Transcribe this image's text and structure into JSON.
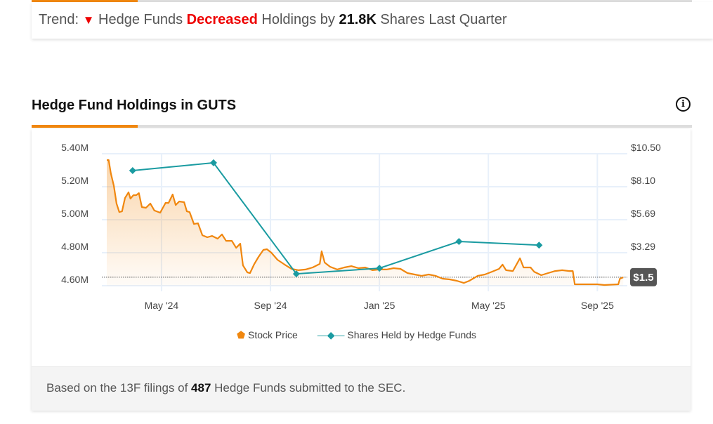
{
  "trend": {
    "prefix": "Trend:",
    "arrow": "▼",
    "part1": "Hedge Funds",
    "verb": "Decreased",
    "part2": "Holdings by",
    "amount": "21.8K",
    "part3": "Shares Last Quarter"
  },
  "section_title": "Hedge Fund Holdings in GUTS",
  "info_icon": "i",
  "footer": {
    "prefix": "Based on the 13F filings of",
    "count": "487",
    "suffix": "Hedge Funds submitted to the SEC."
  },
  "colors": {
    "price": "#f0870f",
    "shares": "#1a9ba1",
    "accent": "#f0870f",
    "down": "#e00000"
  },
  "chart_data": {
    "type": "line",
    "title": "Hedge Fund Holdings in GUTS",
    "x_units": "months since Jan 2024",
    "x_range": [
      1.81,
      21.1
    ],
    "x_ticks": [
      {
        "v": 4,
        "label": "May '24"
      },
      {
        "v": 8,
        "label": "Sep '24"
      },
      {
        "v": 12,
        "label": "Jan '25"
      },
      {
        "v": 16,
        "label": "May '25"
      },
      {
        "v": 20,
        "label": "Sep '25"
      }
    ],
    "y_left": {
      "label": "Shares Held",
      "range": [
        4.6,
        5.4
      ],
      "ticks": [
        {
          "v": 5.4,
          "label": "5.40M"
        },
        {
          "v": 5.2,
          "label": "5.20M"
        },
        {
          "v": 5.0,
          "label": "5.00M"
        },
        {
          "v": 4.8,
          "label": "4.80M"
        },
        {
          "v": 4.6,
          "label": "4.60M"
        }
      ]
    },
    "y_right": {
      "label": "Stock Price",
      "range": [
        0.88,
        10.5
      ],
      "ticks": [
        {
          "v": 10.5,
          "label": "$10.50"
        },
        {
          "v": 8.1,
          "label": "$8.10"
        },
        {
          "v": 5.69,
          "label": "$5.69"
        },
        {
          "v": 3.29,
          "label": "$3.29"
        }
      ]
    },
    "current_price_label": "$1.5",
    "current_price": 1.5,
    "legend": [
      "Stock Price",
      "Shares Held by Hedge Funds"
    ],
    "series": [
      {
        "name": "Stock Price",
        "axis": "right",
        "points": [
          [
            1.99,
            10.04
          ],
          [
            2.06,
            10.04
          ],
          [
            2.14,
            9.07
          ],
          [
            2.25,
            8.15
          ],
          [
            2.35,
            6.87
          ],
          [
            2.45,
            6.25
          ],
          [
            2.55,
            6.3
          ],
          [
            2.66,
            7.28
          ],
          [
            2.79,
            7.69
          ],
          [
            2.86,
            7.23
          ],
          [
            2.97,
            7.48
          ],
          [
            3.07,
            7.48
          ],
          [
            3.17,
            7.63
          ],
          [
            3.28,
            6.61
          ],
          [
            3.43,
            6.56
          ],
          [
            3.59,
            6.87
          ],
          [
            3.74,
            6.36
          ],
          [
            3.95,
            6.2
          ],
          [
            4.15,
            6.92
          ],
          [
            4.26,
            6.92
          ],
          [
            4.41,
            7.53
          ],
          [
            4.52,
            6.76
          ],
          [
            4.65,
            7.02
          ],
          [
            4.83,
            6.97
          ],
          [
            4.93,
            6.3
          ],
          [
            5.03,
            6.25
          ],
          [
            5.19,
            5.38
          ],
          [
            5.34,
            5.43
          ],
          [
            5.5,
            4.56
          ],
          [
            5.68,
            4.41
          ],
          [
            5.86,
            4.51
          ],
          [
            6.06,
            4.31
          ],
          [
            6.22,
            4.62
          ],
          [
            6.37,
            4.15
          ],
          [
            6.58,
            4.15
          ],
          [
            6.74,
            3.64
          ],
          [
            6.89,
            3.95
          ],
          [
            6.99,
            2.36
          ],
          [
            7.15,
            1.85
          ],
          [
            7.25,
            1.8
          ],
          [
            7.41,
            2.47
          ],
          [
            7.56,
            2.98
          ],
          [
            7.74,
            3.49
          ],
          [
            7.87,
            3.54
          ],
          [
            8.03,
            3.29
          ],
          [
            8.26,
            2.77
          ],
          [
            8.52,
            2.42
          ],
          [
            8.77,
            2.11
          ],
          [
            9.03,
            2.01
          ],
          [
            9.29,
            2.06
          ],
          [
            9.55,
            2.21
          ],
          [
            9.81,
            2.47
          ],
          [
            9.88,
            3.39
          ],
          [
            9.99,
            2.57
          ],
          [
            10.19,
            2.26
          ],
          [
            10.45,
            2.06
          ],
          [
            10.71,
            2.21
          ],
          [
            10.97,
            2.31
          ],
          [
            11.23,
            2.16
          ],
          [
            11.48,
            2.21
          ],
          [
            11.74,
            2.01
          ],
          [
            12.0,
            2.06
          ],
          [
            12.26,
            2.06
          ],
          [
            12.52,
            2.16
          ],
          [
            12.77,
            2.11
          ],
          [
            13.03,
            1.8
          ],
          [
            13.29,
            1.7
          ],
          [
            13.55,
            1.6
          ],
          [
            13.81,
            1.7
          ],
          [
            14.06,
            1.6
          ],
          [
            14.32,
            1.39
          ],
          [
            14.58,
            1.34
          ],
          [
            14.84,
            1.24
          ],
          [
            15.1,
            1.08
          ],
          [
            15.3,
            1.24
          ],
          [
            15.61,
            1.6
          ],
          [
            15.87,
            1.7
          ],
          [
            16.13,
            1.9
          ],
          [
            16.39,
            2.11
          ],
          [
            16.52,
            2.42
          ],
          [
            16.65,
            2.01
          ],
          [
            16.9,
            1.95
          ],
          [
            17.16,
            2.88
          ],
          [
            17.29,
            2.21
          ],
          [
            17.55,
            2.21
          ],
          [
            17.68,
            1.9
          ],
          [
            17.94,
            1.65
          ],
          [
            18.19,
            1.8
          ],
          [
            18.45,
            1.95
          ],
          [
            18.71,
            2.01
          ],
          [
            18.97,
            1.95
          ],
          [
            19.1,
            1.95
          ],
          [
            19.17,
            0.98
          ],
          [
            19.48,
            0.98
          ],
          [
            20.0,
            0.98
          ],
          [
            20.26,
            0.93
          ],
          [
            20.77,
            0.98
          ],
          [
            20.83,
            1.39
          ],
          [
            20.95,
            1.49
          ]
        ]
      },
      {
        "name": "Shares Held by Hedge Funds",
        "axis": "left",
        "unit": "M",
        "points": [
          [
            2.94,
            5.298
          ],
          [
            5.91,
            5.345
          ],
          [
            8.95,
            4.672
          ],
          [
            12.0,
            4.706
          ],
          [
            14.92,
            4.868
          ],
          [
            17.86,
            4.846
          ]
        ]
      }
    ]
  }
}
